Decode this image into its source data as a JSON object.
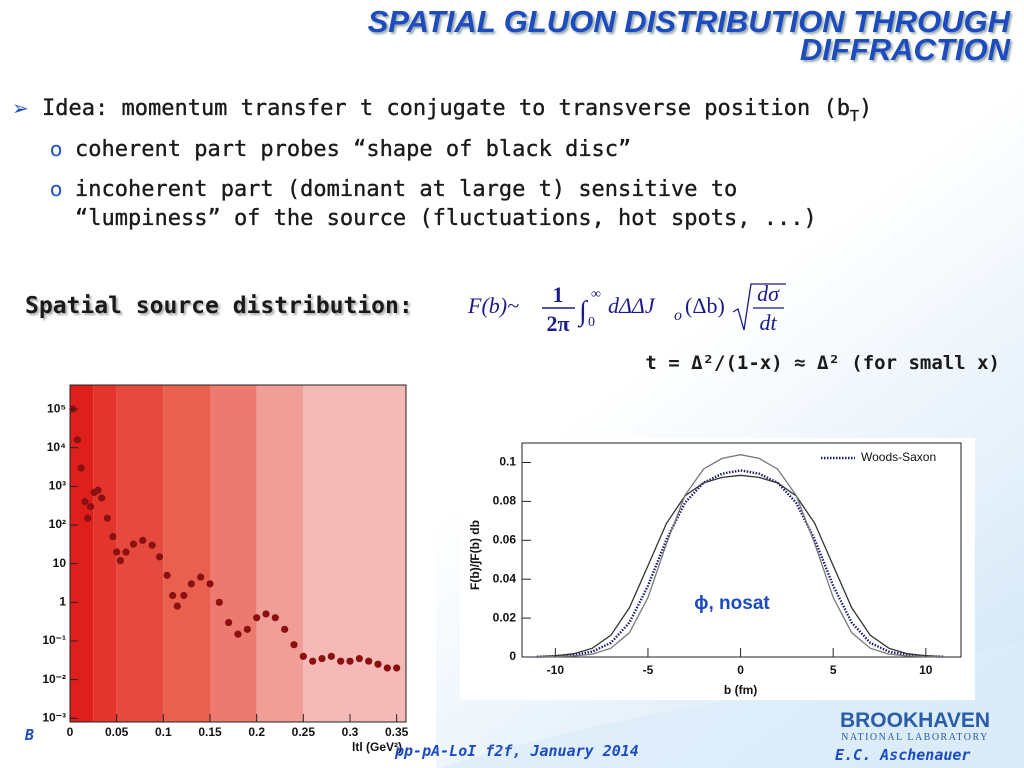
{
  "title": [
    "SPATIAL GLUON DISTRIBUTION THROUGH",
    "DIFFRACTION"
  ],
  "bullet": {
    "text": "Idea: momentum transfer t conjugate to transverse position (b",
    "subscript": "T",
    "tail": ")"
  },
  "sub_bullets": [
    [
      "coherent part probes “shape of black disc”"
    ],
    [
      "incoherent part (dominant at large t) sensitive to",
      "“lumpiness” of the source (fluctuations, hot spots, ...)"
    ]
  ],
  "source_label": "Spatial source distribution:",
  "formula": {
    "lhs": "F(b)~",
    "numerator": "1",
    "denominator": "2π",
    "upper": "∞",
    "lower": "0",
    "integrand": "dΔΔJ",
    "bessel_index": "o",
    "argument": "(Δb)",
    "root_numerator": "dσ",
    "root_denominator": "dt"
  },
  "relation": "t =  Δ²/(1-x) ≈ Δ²   (for small x)",
  "footer": {
    "left": "B",
    "center": "pp-pA-LoI f2f, January 2014",
    "author": "E.C. Aschenauer",
    "lab": "BROOKHAVEN",
    "lab_sub": "NATIONAL LABORATORY"
  },
  "chart_data": [
    {
      "type": "scatter",
      "x": [
        0.003,
        0.008,
        0.012,
        0.016,
        0.019,
        0.022,
        0.026,
        0.03,
        0.034,
        0.04,
        0.046,
        0.05,
        0.054,
        0.06,
        0.068,
        0.078,
        0.088,
        0.096,
        0.104,
        0.11,
        0.115,
        0.122,
        0.13,
        0.14,
        0.15,
        0.16,
        0.17,
        0.18,
        0.19,
        0.2,
        0.21,
        0.22,
        0.23,
        0.24,
        0.25,
        0.26,
        0.27,
        0.28,
        0.29,
        0.3,
        0.31,
        0.32,
        0.33,
        0.34,
        0.35
      ],
      "values": [
        100000,
        16000,
        3000,
        400,
        150,
        300,
        700,
        800,
        500,
        150,
        50,
        20,
        12,
        20,
        32,
        40,
        30,
        15,
        5,
        1.5,
        0.8,
        1.5,
        3,
        4.5,
        3,
        1,
        0.3,
        0.15,
        0.2,
        0.4,
        0.5,
        0.4,
        0.2,
        0.08,
        0.04,
        0.03,
        0.035,
        0.04,
        0.03,
        0.03,
        0.035,
        0.03,
        0.025,
        0.02,
        0.02
      ],
      "color": "#8b1010",
      "xlim": [
        0,
        0.36
      ],
      "ylim": [
        0.0008,
        420000
      ],
      "log_y": true,
      "xticks": [
        0,
        0.05,
        0.1,
        0.15,
        0.2,
        0.25,
        0.3,
        0.35
      ],
      "yticks": [
        {
          "value": 0.001,
          "label": "10⁻³"
        },
        {
          "value": 0.01,
          "label": "10⁻²"
        },
        {
          "value": 0.1,
          "label": "10⁻¹"
        },
        1,
        10,
        {
          "value": 100,
          "label": "10²"
        },
        {
          "value": 1000,
          "label": "10³"
        },
        {
          "value": 10000,
          "label": "10⁴"
        },
        {
          "value": 100000,
          "label": "10⁵"
        }
      ],
      "xlabel": "ltl (GeV²)",
      "bands": {
        "edges": [
          0,
          0.025,
          0.05,
          0.1,
          0.15,
          0.2,
          0.25,
          0.36
        ],
        "colors": [
          "#df1f1c",
          "#e3352c",
          "#e6493d",
          "#e9604f",
          "#ed7a70",
          "#f19d98",
          "#f5b9b7"
        ]
      }
    },
    {
      "type": "line",
      "x": [
        -11,
        -10,
        -9,
        -8,
        -7,
        -6,
        -5,
        -4,
        -3,
        -2,
        -1,
        0,
        1,
        2,
        3,
        4,
        5,
        6,
        7,
        8,
        9,
        10,
        11
      ],
      "series": [
        {
          "name": "Woods-Saxon",
          "color": "#1a1a6e",
          "dotted": true,
          "values": [
            0.0001,
            0.0004,
            0.0011,
            0.0028,
            0.0073,
            0.0177,
            0.0366,
            0.0604,
            0.0793,
            0.0896,
            0.0942,
            0.0959,
            0.0942,
            0.0896,
            0.0793,
            0.0604,
            0.0366,
            0.0177,
            0.0073,
            0.0028,
            0.0011,
            0.0004,
            0.0001
          ]
        },
        {
          "color": "#333333",
          "values": [
            0.0002,
            0.0006,
            0.0017,
            0.0045,
            0.0112,
            0.0253,
            0.047,
            0.0687,
            0.0828,
            0.0895,
            0.0923,
            0.0934,
            0.0923,
            0.0895,
            0.0828,
            0.0687,
            0.047,
            0.0253,
            0.0112,
            0.0045,
            0.0017,
            0.0006,
            0.0002
          ]
        },
        {
          "color": "#777777",
          "values": [
            0.0001,
            0.0002,
            0.0005,
            0.0015,
            0.0045,
            0.0125,
            0.0306,
            0.0583,
            0.0831,
            0.0966,
            0.1021,
            0.104,
            0.1021,
            0.0966,
            0.0831,
            0.0583,
            0.0306,
            0.0125,
            0.0045,
            0.0015,
            0.0005,
            0.0002,
            0.0001
          ]
        }
      ],
      "xlim": [
        -11.8,
        11.9
      ],
      "ylim": [
        0,
        0.11
      ],
      "xticks": [
        -10,
        -5,
        0,
        5,
        10
      ],
      "yticks": [
        0,
        0.02,
        0.04,
        0.06,
        0.08,
        0.1
      ],
      "xlabel": "b (fm)",
      "ylabel": "F(b)/∫F(b) db",
      "annotation": "ϕ, nosat",
      "legend": "upper right"
    }
  ]
}
